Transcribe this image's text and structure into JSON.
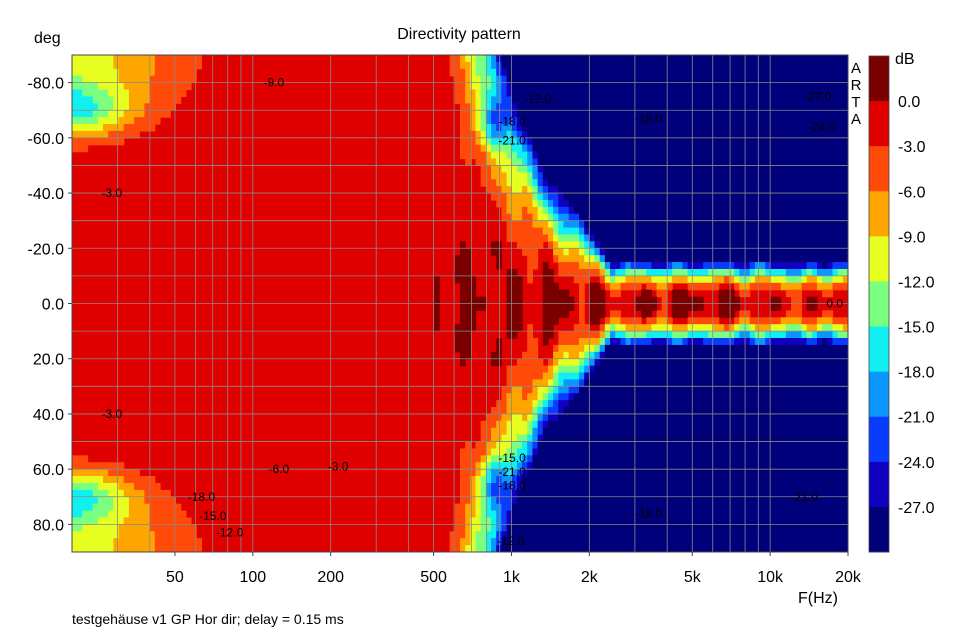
{
  "chart_data": {
    "type": "heatmap",
    "title": "Directivity pattern",
    "ylabel": "deg",
    "xlabel": "F(Hz)",
    "colorbar_label": "dB",
    "watermark": "ARTA",
    "footer": "testgehäuse v1 GP Hor dir; delay = 0.15 ms",
    "x_scale": "log",
    "xlim": [
      20,
      20000
    ],
    "ylim": [
      -90,
      90
    ],
    "x_ticks": [
      {
        "v": 50,
        "label": "50"
      },
      {
        "v": 100,
        "label": "100"
      },
      {
        "v": 200,
        "label": "200"
      },
      {
        "v": 500,
        "label": "500"
      },
      {
        "v": 1000,
        "label": "1k"
      },
      {
        "v": 2000,
        "label": "2k"
      },
      {
        "v": 5000,
        "label": "5k"
      },
      {
        "v": 10000,
        "label": "10k"
      },
      {
        "v": 20000,
        "label": "20k"
      }
    ],
    "y_ticks": [
      {
        "v": -80,
        "label": "-80.0"
      },
      {
        "v": -60,
        "label": "-60.0"
      },
      {
        "v": -40,
        "label": "-40.0"
      },
      {
        "v": -20,
        "label": "-20.0"
      },
      {
        "v": 0,
        "label": "0.0"
      },
      {
        "v": 20,
        "label": "20.0"
      },
      {
        "v": 40,
        "label": "40.0"
      },
      {
        "v": 60,
        "label": "60.0"
      },
      {
        "v": 80,
        "label": "80.0"
      }
    ],
    "colorbar": {
      "levels": [
        "0.0",
        "-3.0",
        "-6.0",
        "-9.0",
        "-12.0",
        "-15.0",
        "-18.0",
        "-21.0",
        "-24.0",
        "-27.0"
      ],
      "colors": [
        "#7a0000",
        "#e00000",
        "#ff4a0a",
        "#ffa500",
        "#e6ff20",
        "#7aff80",
        "#10f0f0",
        "#0a96ff",
        "#0a3cff",
        "#1000c0",
        "#00007a"
      ]
    },
    "grid": true,
    "annotations": [
      {
        "f": 110,
        "a": -80,
        "label": "-9.0"
      },
      {
        "f": 26,
        "a": -40,
        "label": "-3.0"
      },
      {
        "f": 1120,
        "a": -74,
        "label": "-12.0"
      },
      {
        "f": 3000,
        "a": -67,
        "label": "-18.0"
      },
      {
        "f": 890,
        "a": -66,
        "label": "-18.0"
      },
      {
        "f": 890,
        "a": -59,
        "label": "-21.0"
      },
      {
        "f": 13500,
        "a": -75,
        "label": "-27.0"
      },
      {
        "f": 14000,
        "a": -64,
        "label": "-24.0"
      },
      {
        "f": 26,
        "a": 40,
        "label": "-3.0"
      },
      {
        "f": 56,
        "a": 70,
        "label": "-18.0"
      },
      {
        "f": 62,
        "a": 77,
        "label": "-15.0"
      },
      {
        "f": 72,
        "a": 83,
        "label": "-12.0"
      },
      {
        "f": 115,
        "a": 60,
        "label": "-6.0"
      },
      {
        "f": 195,
        "a": 59,
        "label": "-3.0"
      },
      {
        "f": 890,
        "a": 56,
        "label": "-15.0"
      },
      {
        "f": 890,
        "a": 61,
        "label": "-21.0"
      },
      {
        "f": 890,
        "a": 66,
        "label": "-18.0"
      },
      {
        "f": 3000,
        "a": 76,
        "label": "-18.0"
      },
      {
        "f": 12000,
        "a": 70,
        "label": "-21.0"
      },
      {
        "f": 880,
        "a": 86,
        "label": "-12.0"
      },
      {
        "f": 16500,
        "a": 0,
        "label": "0.0"
      }
    ]
  }
}
